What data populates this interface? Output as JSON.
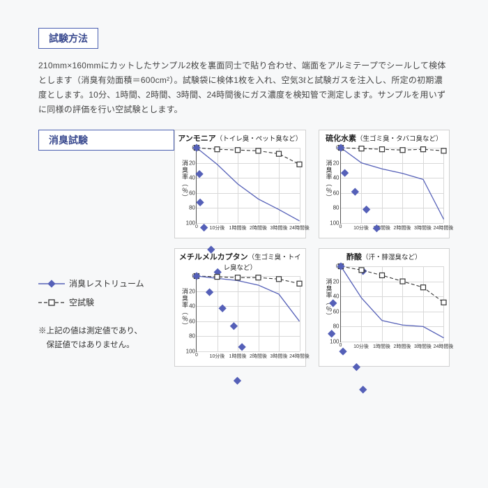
{
  "section1_label": "試験方法",
  "body_text": "210mm×160mmにカットしたサンプル2枚を裏面同士で貼り合わせ、端面をアルミテープでシールして検体とします（消臭有効面積＝600cm²）。試験袋に検体1枚を入れ、空気3ℓと試験ガスを注入し、所定の初期濃度とします。10分、1時間、2時間、3時間、24時間後にガス濃度を検知管で測定します。サンプルを用いずに同様の評価を行い空試験とします。",
  "section2_label": "消臭試験",
  "legend": {
    "series1": "消臭レストリューム",
    "series2": "空試験"
  },
  "note_line1": "※上記の値は測定値であり、",
  "note_line2": "　保証値ではありません。",
  "y_label": "消臭率（％）",
  "charts_common": {
    "xlim": [
      0,
      5
    ],
    "ylim": [
      0,
      100
    ],
    "ytick_step": 20,
    "x_ticks": [
      "0",
      "10分後",
      "1時間後",
      "2時間後",
      "3時間後",
      "24時間後"
    ],
    "series1_color": "#5560b8",
    "series2_color": "#333333",
    "background": "#ffffff",
    "grid_color": "#d8d8d8"
  },
  "charts": [
    {
      "title_main": "アンモニア",
      "title_sub": "（トイレ臭・ペット臭など）",
      "series1": [
        0,
        22,
        48,
        68,
        82,
        97
      ],
      "series2": [
        0,
        2,
        3,
        4,
        8,
        22
      ]
    },
    {
      "title_main": "硫化水素",
      "title_sub": "（生ゴミ臭・タバコ臭など）",
      "series1": [
        0,
        20,
        28,
        34,
        42,
        95
      ],
      "series2": [
        0,
        1,
        2,
        3,
        2,
        4
      ]
    },
    {
      "title_main": "メチルメルカプタン",
      "title_sub": "（生ゴミ臭・トイレ臭など）",
      "series1": [
        0,
        3,
        6,
        12,
        24,
        60
      ],
      "series2": [
        0,
        1,
        2,
        2,
        4,
        10
      ]
    },
    {
      "title_main": "酢酸",
      "title_sub": "（汗・腓湿臭など）",
      "series1": [
        0,
        42,
        72,
        78,
        80,
        95
      ],
      "series2": [
        0,
        5,
        12,
        20,
        28,
        48
      ]
    }
  ]
}
